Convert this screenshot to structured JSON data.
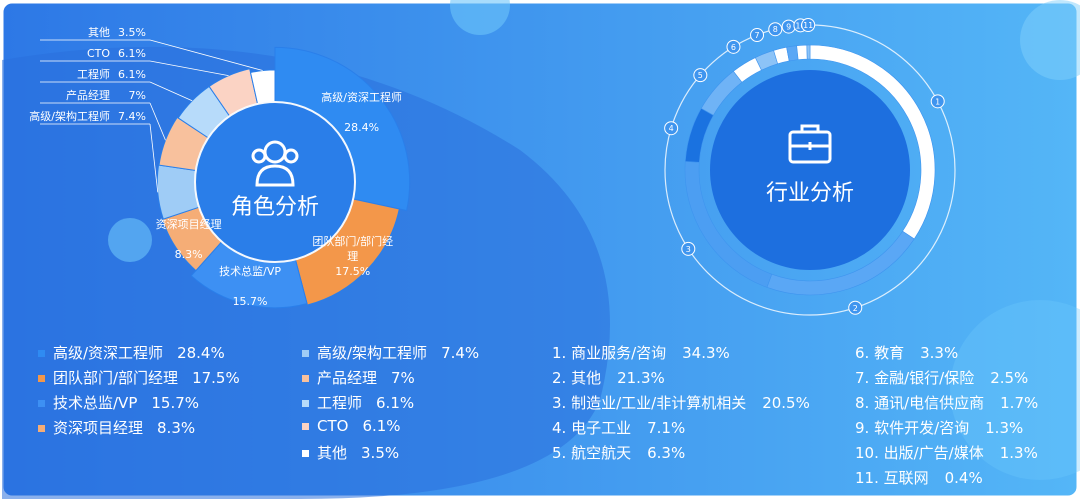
{
  "chart_data": [
    {
      "type": "rose",
      "title": "角色分析",
      "categories": [
        "高级/资深工程师",
        "团队部门/部门经理",
        "技术总监/VP",
        "资深项目经理",
        "高级/架构工程师",
        "产品经理",
        "工程师",
        "CTO",
        "其他"
      ],
      "values": [
        28.4,
        17.5,
        15.7,
        8.3,
        7.4,
        7,
        6.1,
        6.1,
        3.5
      ],
      "value_labels": [
        "28.4%",
        "17.5%",
        "15.7%",
        "8.3%",
        "7.4%",
        "7%",
        "6.1%",
        "6.1%",
        "3.5%"
      ],
      "colors": [
        "#2f8bf2",
        "#f3974a",
        "#3d90f3",
        "#f5ad76",
        "#9fccf6",
        "#f8c19d",
        "#b7dbfa",
        "#fbd3c4",
        "#ffffff"
      ]
    },
    {
      "type": "ring",
      "title": "行业分析",
      "categories": [
        "1. 商业服务/咨询",
        "2. 其他",
        "3. 制造业/工业/非计算机相关",
        "4. 电子工业",
        "5. 航空航天",
        "6. 教育",
        "7. 金融/银行/保险",
        "8. 通讯/电信供应商",
        "9. 软件开发/咨询",
        "10. 出版/广告/媒体",
        "11. 互联网"
      ],
      "marker_labels": [
        "1",
        "2",
        "3",
        "4",
        "5",
        "6",
        "7",
        "8",
        "9",
        "10",
        "11"
      ],
      "values": [
        34.3,
        21.3,
        20.5,
        7.1,
        6.3,
        3.3,
        2.5,
        1.7,
        1.3,
        1.3,
        0.4
      ],
      "value_labels": [
        "34.3%",
        "21.3%",
        "20.5%",
        "7.1%",
        "6.3%",
        "3.3%",
        "2.5%",
        "1.7%",
        "1.3%",
        "1.3%",
        "0.4%"
      ],
      "colors": [
        "#ffffff",
        "#5aa7f5",
        "#4c9ef2",
        "#1a72e0",
        "#6fb3f6",
        "#ffffff",
        "#8cc3f7",
        "#ffffff",
        "#5aa7f5",
        "#ffffff",
        "#8cc3f7"
      ]
    }
  ]
}
